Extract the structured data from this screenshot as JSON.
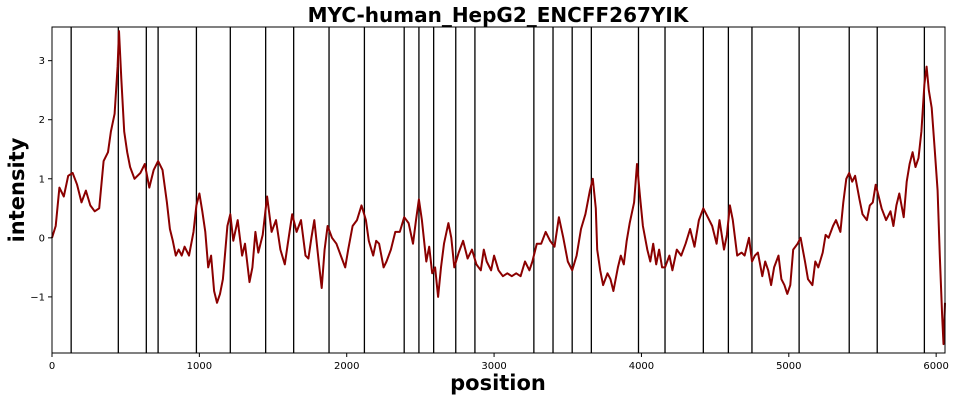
{
  "chart_data": {
    "type": "line",
    "title": "MYC-human_HepG2_ENCFF267YIK",
    "xlabel": "position",
    "ylabel": "intensity",
    "xlim": [
      0,
      6060
    ],
    "ylim": [
      -1.95,
      3.57
    ],
    "x_ticks": [
      0,
      1000,
      2000,
      3000,
      4000,
      5000,
      6000
    ],
    "x_tick_labels": [
      "0",
      "1000",
      "2000",
      "3000",
      "4000",
      "5000",
      "6000"
    ],
    "y_ticks": [
      -1,
      0,
      1,
      2,
      3
    ],
    "y_tick_labels": [
      "−1",
      "0",
      "1",
      "2",
      "3"
    ],
    "grid": false,
    "legend": "none",
    "series": [
      {
        "color": "#8b0000",
        "points": [
          [
            0,
            0.0
          ],
          [
            25,
            0.2
          ],
          [
            50,
            0.85
          ],
          [
            80,
            0.7
          ],
          [
            110,
            1.05
          ],
          [
            140,
            1.1
          ],
          [
            170,
            0.9
          ],
          [
            200,
            0.6
          ],
          [
            230,
            0.8
          ],
          [
            260,
            0.55
          ],
          [
            290,
            0.45
          ],
          [
            320,
            0.5
          ],
          [
            350,
            1.3
          ],
          [
            380,
            1.45
          ],
          [
            400,
            1.8
          ],
          [
            425,
            2.1
          ],
          [
            445,
            2.9
          ],
          [
            455,
            3.5
          ],
          [
            470,
            2.7
          ],
          [
            490,
            1.8
          ],
          [
            510,
            1.45
          ],
          [
            530,
            1.2
          ],
          [
            560,
            1.0
          ],
          [
            600,
            1.1
          ],
          [
            630,
            1.25
          ],
          [
            660,
            0.85
          ],
          [
            690,
            1.15
          ],
          [
            720,
            1.3
          ],
          [
            750,
            1.15
          ],
          [
            780,
            0.6
          ],
          [
            800,
            0.15
          ],
          [
            820,
            -0.05
          ],
          [
            840,
            -0.3
          ],
          [
            860,
            -0.2
          ],
          [
            880,
            -0.3
          ],
          [
            900,
            -0.15
          ],
          [
            930,
            -0.3
          ],
          [
            960,
            0.1
          ],
          [
            980,
            0.55
          ],
          [
            1000,
            0.75
          ],
          [
            1020,
            0.45
          ],
          [
            1040,
            0.1
          ],
          [
            1060,
            -0.5
          ],
          [
            1080,
            -0.3
          ],
          [
            1100,
            -0.9
          ],
          [
            1120,
            -1.1
          ],
          [
            1140,
            -0.95
          ],
          [
            1160,
            -0.7
          ],
          [
            1190,
            0.2
          ],
          [
            1210,
            0.4
          ],
          [
            1230,
            -0.05
          ],
          [
            1260,
            0.3
          ],
          [
            1290,
            -0.3
          ],
          [
            1310,
            -0.1
          ],
          [
            1340,
            -0.75
          ],
          [
            1360,
            -0.5
          ],
          [
            1380,
            0.1
          ],
          [
            1400,
            -0.25
          ],
          [
            1430,
            0.05
          ],
          [
            1460,
            0.7
          ],
          [
            1490,
            0.1
          ],
          [
            1520,
            0.3
          ],
          [
            1550,
            -0.2
          ],
          [
            1580,
            -0.45
          ],
          [
            1600,
            -0.1
          ],
          [
            1630,
            0.4
          ],
          [
            1660,
            0.1
          ],
          [
            1690,
            0.3
          ],
          [
            1720,
            -0.3
          ],
          [
            1740,
            -0.35
          ],
          [
            1760,
            0.0
          ],
          [
            1780,
            0.3
          ],
          [
            1810,
            -0.4
          ],
          [
            1830,
            -0.85
          ],
          [
            1850,
            -0.2
          ],
          [
            1870,
            0.2
          ],
          [
            1900,
            0.0
          ],
          [
            1930,
            -0.1
          ],
          [
            1960,
            -0.3
          ],
          [
            1990,
            -0.5
          ],
          [
            2010,
            -0.2
          ],
          [
            2040,
            0.2
          ],
          [
            2070,
            0.3
          ],
          [
            2100,
            0.55
          ],
          [
            2130,
            0.3
          ],
          [
            2150,
            -0.05
          ],
          [
            2180,
            -0.3
          ],
          [
            2200,
            -0.05
          ],
          [
            2220,
            -0.1
          ],
          [
            2250,
            -0.5
          ],
          [
            2270,
            -0.4
          ],
          [
            2300,
            -0.2
          ],
          [
            2330,
            0.1
          ],
          [
            2360,
            0.1
          ],
          [
            2390,
            0.35
          ],
          [
            2420,
            0.25
          ],
          [
            2450,
            -0.1
          ],
          [
            2470,
            0.3
          ],
          [
            2490,
            0.65
          ],
          [
            2510,
            0.3
          ],
          [
            2540,
            -0.4
          ],
          [
            2560,
            -0.15
          ],
          [
            2580,
            -0.6
          ],
          [
            2600,
            -0.5
          ],
          [
            2620,
            -1.0
          ],
          [
            2640,
            -0.5
          ],
          [
            2660,
            -0.1
          ],
          [
            2690,
            0.25
          ],
          [
            2710,
            0.0
          ],
          [
            2730,
            -0.5
          ],
          [
            2760,
            -0.25
          ],
          [
            2790,
            -0.05
          ],
          [
            2820,
            -0.35
          ],
          [
            2850,
            -0.2
          ],
          [
            2880,
            -0.45
          ],
          [
            2910,
            -0.55
          ],
          [
            2930,
            -0.2
          ],
          [
            2950,
            -0.4
          ],
          [
            2980,
            -0.55
          ],
          [
            3000,
            -0.3
          ],
          [
            3030,
            -0.55
          ],
          [
            3060,
            -0.65
          ],
          [
            3090,
            -0.6
          ],
          [
            3120,
            -0.65
          ],
          [
            3150,
            -0.6
          ],
          [
            3180,
            -0.65
          ],
          [
            3210,
            -0.4
          ],
          [
            3240,
            -0.55
          ],
          [
            3260,
            -0.4
          ],
          [
            3290,
            -0.1
          ],
          [
            3320,
            -0.1
          ],
          [
            3350,
            0.1
          ],
          [
            3380,
            -0.05
          ],
          [
            3410,
            -0.15
          ],
          [
            3440,
            0.35
          ],
          [
            3470,
            0.0
          ],
          [
            3500,
            -0.4
          ],
          [
            3530,
            -0.55
          ],
          [
            3560,
            -0.3
          ],
          [
            3590,
            0.15
          ],
          [
            3620,
            0.4
          ],
          [
            3650,
            0.8
          ],
          [
            3670,
            1.0
          ],
          [
            3690,
            0.5
          ],
          [
            3700,
            -0.2
          ],
          [
            3720,
            -0.55
          ],
          [
            3740,
            -0.8
          ],
          [
            3770,
            -0.6
          ],
          [
            3790,
            -0.7
          ],
          [
            3810,
            -0.9
          ],
          [
            3840,
            -0.5
          ],
          [
            3860,
            -0.3
          ],
          [
            3880,
            -0.45
          ],
          [
            3900,
            -0.05
          ],
          [
            3920,
            0.25
          ],
          [
            3950,
            0.6
          ],
          [
            3970,
            1.25
          ],
          [
            3990,
            0.7
          ],
          [
            4010,
            0.2
          ],
          [
            4040,
            -0.2
          ],
          [
            4060,
            -0.4
          ],
          [
            4080,
            -0.1
          ],
          [
            4100,
            -0.45
          ],
          [
            4120,
            -0.2
          ],
          [
            4140,
            -0.5
          ],
          [
            4160,
            -0.5
          ],
          [
            4190,
            -0.3
          ],
          [
            4210,
            -0.55
          ],
          [
            4240,
            -0.2
          ],
          [
            4270,
            -0.3
          ],
          [
            4300,
            -0.1
          ],
          [
            4330,
            0.15
          ],
          [
            4360,
            -0.15
          ],
          [
            4390,
            0.3
          ],
          [
            4420,
            0.5
          ],
          [
            4450,
            0.35
          ],
          [
            4480,
            0.2
          ],
          [
            4510,
            -0.1
          ],
          [
            4530,
            0.3
          ],
          [
            4560,
            -0.2
          ],
          [
            4580,
            0.05
          ],
          [
            4600,
            0.55
          ],
          [
            4620,
            0.3
          ],
          [
            4650,
            -0.3
          ],
          [
            4680,
            -0.25
          ],
          [
            4700,
            -0.3
          ],
          [
            4730,
            0.0
          ],
          [
            4750,
            -0.4
          ],
          [
            4770,
            -0.3
          ],
          [
            4790,
            -0.25
          ],
          [
            4820,
            -0.65
          ],
          [
            4840,
            -0.4
          ],
          [
            4860,
            -0.55
          ],
          [
            4880,
            -0.8
          ],
          [
            4900,
            -0.5
          ],
          [
            4930,
            -0.3
          ],
          [
            4950,
            -0.7
          ],
          [
            4970,
            -0.8
          ],
          [
            4990,
            -0.95
          ],
          [
            5010,
            -0.8
          ],
          [
            5030,
            -0.2
          ],
          [
            5060,
            -0.1
          ],
          [
            5080,
            0.0
          ],
          [
            5110,
            -0.4
          ],
          [
            5130,
            -0.7
          ],
          [
            5160,
            -0.8
          ],
          [
            5180,
            -0.4
          ],
          [
            5200,
            -0.5
          ],
          [
            5230,
            -0.25
          ],
          [
            5250,
            0.05
          ],
          [
            5270,
            0.0
          ],
          [
            5300,
            0.2
          ],
          [
            5320,
            0.3
          ],
          [
            5350,
            0.1
          ],
          [
            5370,
            0.6
          ],
          [
            5390,
            1.0
          ],
          [
            5410,
            1.1
          ],
          [
            5430,
            0.95
          ],
          [
            5450,
            1.05
          ],
          [
            5480,
            0.65
          ],
          [
            5500,
            0.4
          ],
          [
            5530,
            0.3
          ],
          [
            5550,
            0.55
          ],
          [
            5570,
            0.6
          ],
          [
            5590,
            0.9
          ],
          [
            5610,
            0.7
          ],
          [
            5630,
            0.5
          ],
          [
            5660,
            0.3
          ],
          [
            5690,
            0.45
          ],
          [
            5710,
            0.2
          ],
          [
            5730,
            0.55
          ],
          [
            5750,
            0.75
          ],
          [
            5780,
            0.35
          ],
          [
            5800,
            0.95
          ],
          [
            5820,
            1.25
          ],
          [
            5840,
            1.45
          ],
          [
            5860,
            1.2
          ],
          [
            5880,
            1.35
          ],
          [
            5900,
            1.8
          ],
          [
            5920,
            2.6
          ],
          [
            5935,
            2.9
          ],
          [
            5950,
            2.5
          ],
          [
            5970,
            2.2
          ],
          [
            5990,
            1.5
          ],
          [
            6010,
            0.8
          ],
          [
            6025,
            -0.3
          ],
          [
            6040,
            -1.3
          ],
          [
            6050,
            -1.8
          ],
          [
            6060,
            -1.1
          ]
        ]
      }
    ],
    "vlines": [
      130,
      450,
      640,
      720,
      980,
      1210,
      1450,
      1640,
      1880,
      2120,
      2390,
      2490,
      2590,
      2740,
      2870,
      3270,
      3400,
      3530,
      3660,
      3980,
      4160,
      4420,
      4590,
      4750,
      5070,
      5410,
      5600,
      5920
    ],
    "vline_color": "#000000"
  }
}
